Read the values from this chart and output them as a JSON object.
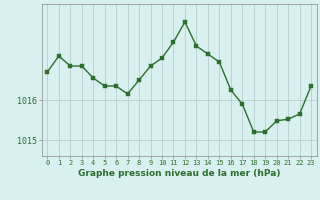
{
  "x": [
    0,
    1,
    2,
    3,
    4,
    5,
    6,
    7,
    8,
    9,
    10,
    11,
    12,
    13,
    14,
    15,
    16,
    17,
    18,
    19,
    20,
    21,
    22,
    23
  ],
  "y": [
    1016.7,
    1017.1,
    1016.85,
    1016.85,
    1016.55,
    1016.35,
    1016.35,
    1016.15,
    1016.5,
    1016.85,
    1017.05,
    1017.45,
    1017.95,
    1017.35,
    1017.15,
    1016.95,
    1016.25,
    1015.9,
    1015.2,
    1015.2,
    1015.48,
    1015.52,
    1015.65,
    1016.35
  ],
  "line_color": "#2d6e2d",
  "marker_color": "#2d6e2d",
  "bg_color": "#d8f0f0",
  "grid_color": "#b0c8c8",
  "xlabel": "Graphe pression niveau de la mer (hPa)",
  "xlabel_fontsize": 6.5,
  "ytick_vals": [
    1015,
    1016
  ],
  "xtick_fontsize": 5,
  "ytick_fontsize": 6,
  "ylim": [
    1014.6,
    1018.4
  ],
  "xlim": [
    -0.5,
    23.5
  ],
  "linewidth": 1.0,
  "markersize": 2.2
}
